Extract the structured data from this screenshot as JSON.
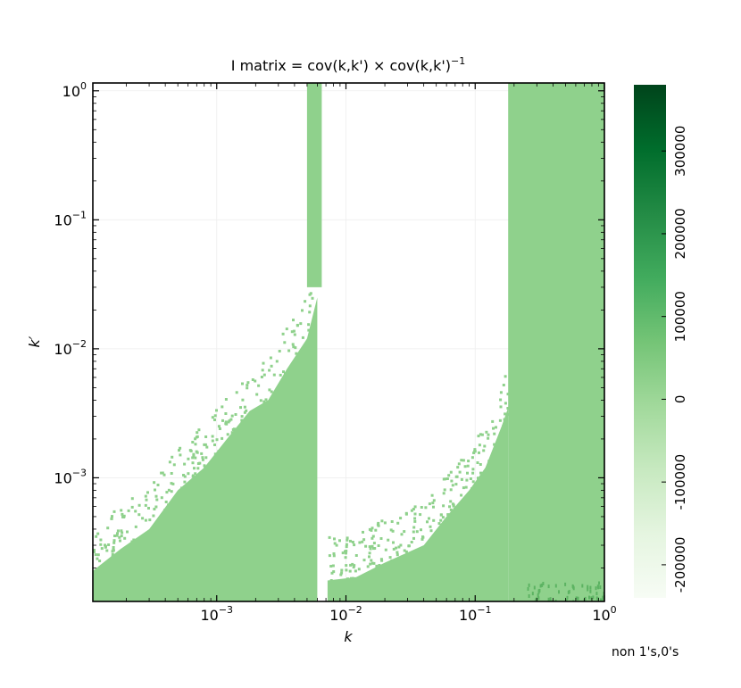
{
  "chart_data": {
    "type": "heatmap",
    "title": "I matrix = cov(k,k') × cov(k,k')",
    "title_superscript": "−1",
    "xlabel": "k",
    "ylabel": "k′",
    "x_scale": "log",
    "y_scale": "log",
    "xlim": [
      0.00011,
      1.0
    ],
    "ylim": [
      0.00011,
      1.15
    ],
    "x_ticks": [
      {
        "value": 0.001,
        "base": "10",
        "exp": "−3"
      },
      {
        "value": 0.01,
        "base": "10",
        "exp": "−2"
      },
      {
        "value": 0.1,
        "base": "10",
        "exp": "−1"
      },
      {
        "value": 1.0,
        "base": "10",
        "exp": "0"
      }
    ],
    "y_ticks": [
      {
        "value": 0.001,
        "base": "10",
        "exp": "−3"
      },
      {
        "value": 0.01,
        "base": "10",
        "exp": "−2"
      },
      {
        "value": 0.1,
        "base": "10",
        "exp": "−1"
      },
      {
        "value": 1.0,
        "base": "10",
        "exp": "0"
      }
    ],
    "grid": true,
    "colormap": "Greens",
    "cell_color": "#8fd18c",
    "dark_cell_color": "#5cb362",
    "colorbar": {
      "min": -240000,
      "max": 380000,
      "ticks": [
        -200000,
        -100000,
        0,
        100000,
        200000,
        300000
      ],
      "tick_labels": [
        "-200000",
        "-100000",
        "0",
        "100000",
        "200000",
        "300000"
      ],
      "colors": [
        "#f7fcf5",
        "#e5f5e0",
        "#c7e9c0",
        "#a1d99b",
        "#74c476",
        "#41ab5d",
        "#238b45",
        "#006d2c",
        "#00441b"
      ]
    },
    "regions": [
      {
        "name": "low-k filled region",
        "k_range": [
          0.00011,
          0.0062
        ],
        "boundary": [
          [
            0.00011,
            0.00019
          ],
          [
            0.00018,
            0.00028
          ],
          [
            0.0003,
            0.0004
          ],
          [
            0.0005,
            0.0008
          ],
          [
            0.0008,
            0.0012
          ],
          [
            0.0012,
            0.002
          ],
          [
            0.0018,
            0.0033
          ],
          [
            0.0025,
            0.004
          ],
          [
            0.0035,
            0.007
          ],
          [
            0.005,
            0.012
          ],
          [
            0.006,
            0.025
          ]
        ]
      },
      {
        "name": "narrow band near k≈0.006",
        "k_range": [
          0.005,
          0.0065
        ],
        "kprime_range": [
          0.03,
          1.15
        ]
      },
      {
        "name": "mid-k filled region",
        "k_range": [
          0.0072,
          0.18
        ],
        "boundary": [
          [
            0.0072,
            0.00016
          ],
          [
            0.012,
            0.00017
          ],
          [
            0.02,
            0.00022
          ],
          [
            0.04,
            0.0003
          ],
          [
            0.06,
            0.0005
          ],
          [
            0.09,
            0.0008
          ],
          [
            0.12,
            0.0012
          ],
          [
            0.16,
            0.0025
          ],
          [
            0.18,
            0.0035
          ]
        ]
      },
      {
        "name": "high-k column",
        "k_range": [
          0.18,
          1.0
        ],
        "kprime_range": [
          0.00011,
          1.15
        ]
      }
    ]
  },
  "annotations": {
    "corner_note": "non 1's,0's"
  }
}
